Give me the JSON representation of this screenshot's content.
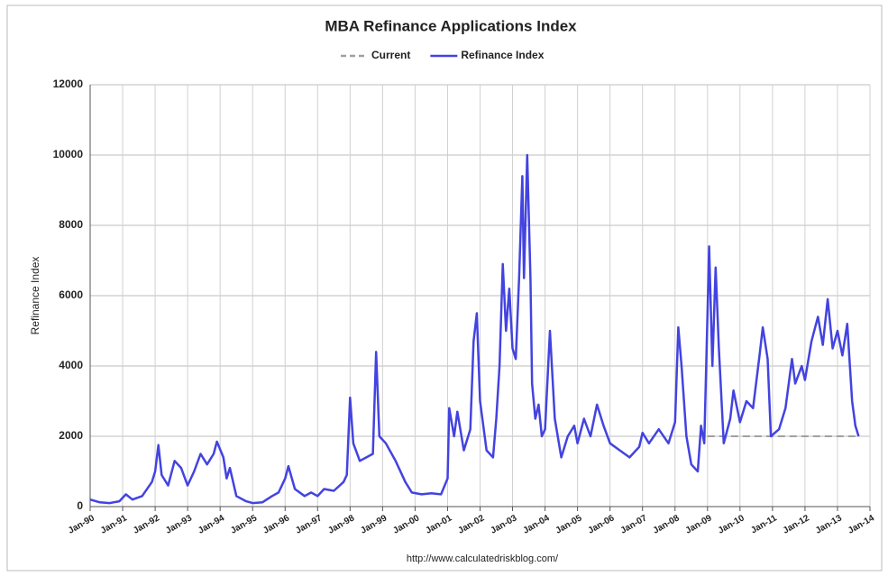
{
  "chart_data": {
    "type": "line",
    "title": "MBA Refinance Applications Index",
    "y_label": "Refinance Index",
    "source": "http://www.calculatedriskblog.com/",
    "legend": "top",
    "grid": true,
    "xlim": [
      1990,
      2014
    ],
    "ylim": [
      0,
      12000
    ],
    "yticks": [
      0,
      2000,
      4000,
      6000,
      8000,
      10000,
      12000
    ],
    "xticks": [
      {
        "value": 1990,
        "label": "Jan-90"
      },
      {
        "value": 1991,
        "label": "Jan-91"
      },
      {
        "value": 1992,
        "label": "Jan-92"
      },
      {
        "value": 1993,
        "label": "Jan-93"
      },
      {
        "value": 1994,
        "label": "Jan-94"
      },
      {
        "value": 1995,
        "label": "Jan-95"
      },
      {
        "value": 1996,
        "label": "Jan-96"
      },
      {
        "value": 1997,
        "label": "Jan-97"
      },
      {
        "value": 1998,
        "label": "Jan-98"
      },
      {
        "value": 1999,
        "label": "Jan-99"
      },
      {
        "value": 2000,
        "label": "Jan-00"
      },
      {
        "value": 2001,
        "label": "Jan-01"
      },
      {
        "value": 2002,
        "label": "Jan-02"
      },
      {
        "value": 2003,
        "label": "Jan-03"
      },
      {
        "value": 2004,
        "label": "Jan-04"
      },
      {
        "value": 2005,
        "label": "Jan-05"
      },
      {
        "value": 2006,
        "label": "Jan-06"
      },
      {
        "value": 2007,
        "label": "Jan-07"
      },
      {
        "value": 2008,
        "label": "Jan-08"
      },
      {
        "value": 2009,
        "label": "Jan-09"
      },
      {
        "value": 2010,
        "label": "Jan-10"
      },
      {
        "value": 2011,
        "label": "Jan-11"
      },
      {
        "value": 2012,
        "label": "Jan-12"
      },
      {
        "value": 2013,
        "label": "Jan-13"
      },
      {
        "value": 2014,
        "label": "Jan-14"
      }
    ],
    "series": [
      {
        "name": "Current",
        "color": "#a0a0a0",
        "style": "dashed",
        "x": [
          2009,
          2013.65
        ],
        "values": [
          2000,
          2000
        ]
      },
      {
        "name": "Refinance Index",
        "color": "#4343e0",
        "style": "solid",
        "x": [
          1990.0,
          1990.3,
          1990.6,
          1990.9,
          1991.1,
          1991.3,
          1991.6,
          1991.9,
          1992.0,
          1992.1,
          1992.2,
          1992.4,
          1992.6,
          1992.8,
          1993.0,
          1993.2,
          1993.4,
          1993.6,
          1993.8,
          1993.9,
          1994.1,
          1994.2,
          1994.3,
          1994.5,
          1994.8,
          1995.0,
          1995.3,
          1995.6,
          1995.8,
          1996.0,
          1996.1,
          1996.3,
          1996.6,
          1996.8,
          1997.0,
          1997.2,
          1997.5,
          1997.8,
          1997.9,
          1998.0,
          1998.1,
          1998.3,
          1998.5,
          1998.7,
          1998.8,
          1998.9,
          1999.1,
          1999.4,
          1999.7,
          1999.9,
          2000.2,
          2000.5,
          2000.8,
          2001.0,
          2001.05,
          2001.2,
          2001.3,
          2001.5,
          2001.7,
          2001.8,
          2001.9,
          2002.0,
          2002.2,
          2002.4,
          2002.5,
          2002.6,
          2002.7,
          2002.8,
          2002.9,
          2003.0,
          2003.1,
          2003.2,
          2003.3,
          2003.35,
          2003.45,
          2003.55,
          2003.6,
          2003.7,
          2003.8,
          2003.9,
          2004.0,
          2004.15,
          2004.3,
          2004.5,
          2004.7,
          2004.9,
          2005.0,
          2005.2,
          2005.4,
          2005.6,
          2005.8,
          2006.0,
          2006.3,
          2006.6,
          2006.9,
          2007.0,
          2007.2,
          2007.5,
          2007.8,
          2008.0,
          2008.1,
          2008.2,
          2008.35,
          2008.5,
          2008.7,
          2008.8,
          2008.9,
          2009.0,
          2009.05,
          2009.15,
          2009.25,
          2009.35,
          2009.5,
          2009.7,
          2009.8,
          2010.0,
          2010.2,
          2010.4,
          2010.6,
          2010.7,
          2010.85,
          2010.95,
          2011.2,
          2011.4,
          2011.6,
          2011.7,
          2011.9,
          2012.0,
          2012.2,
          2012.4,
          2012.55,
          2012.7,
          2012.85,
          2013.0,
          2013.15,
          2013.3,
          2013.45,
          2013.55,
          2013.65
        ],
        "values": [
          200,
          120,
          100,
          150,
          350,
          200,
          300,
          700,
          1000,
          1750,
          900,
          600,
          1300,
          1100,
          600,
          1000,
          1500,
          1200,
          1500,
          1850,
          1400,
          800,
          1100,
          300,
          150,
          100,
          120,
          300,
          400,
          800,
          1150,
          500,
          300,
          400,
          300,
          500,
          450,
          700,
          900,
          3100,
          1800,
          1300,
          1400,
          1500,
          4400,
          2000,
          1800,
          1300,
          700,
          400,
          350,
          380,
          350,
          800,
          2800,
          2000,
          2700,
          1600,
          2200,
          4700,
          5500,
          3000,
          1600,
          1400,
          2500,
          4000,
          6900,
          5000,
          6200,
          4500,
          4200,
          6500,
          9400,
          6500,
          10000,
          6500,
          3500,
          2500,
          2900,
          2000,
          2200,
          5000,
          2500,
          1400,
          2000,
          2300,
          1800,
          2500,
          2000,
          2900,
          2300,
          1800,
          1600,
          1400,
          1700,
          2100,
          1800,
          2200,
          1800,
          2400,
          5100,
          4000,
          2000,
          1200,
          1000,
          2300,
          1800,
          5500,
          7400,
          4000,
          6800,
          4500,
          1800,
          2500,
          3300,
          2400,
          3000,
          2800,
          4300,
          5100,
          4200,
          2000,
          2200,
          2800,
          4200,
          3500,
          4000,
          3600,
          4700,
          5400,
          4600,
          5900,
          4500,
          5000,
          4300,
          5200,
          3000,
          2300,
          2000
        ]
      }
    ]
  }
}
